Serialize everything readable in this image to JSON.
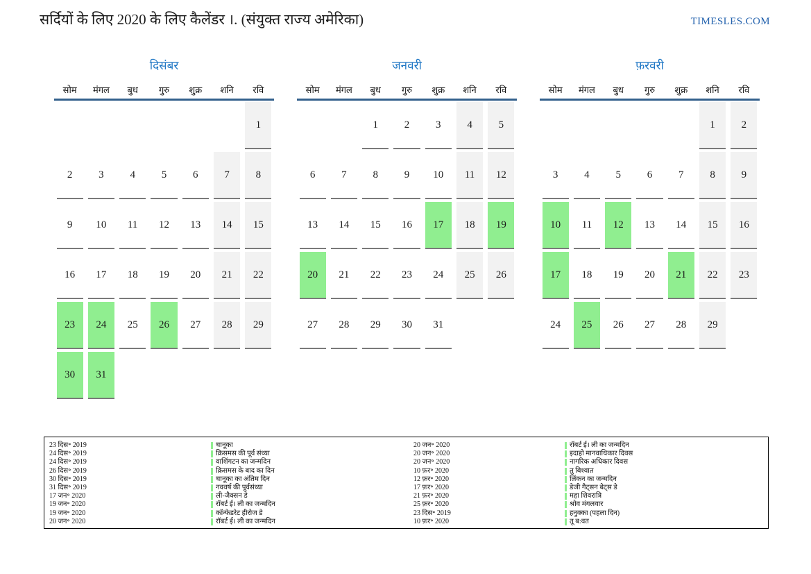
{
  "page": {
    "title": "सर्दियों के लिए 2020 के लिए कैलेंडर ।. (संयुक्त राज्य अमेरिका)",
    "brand": "TIMESLES.COM"
  },
  "colors": {
    "holiday_green": "#90ee90",
    "weekend_gray": "#f2f2f2",
    "month_title_blue": "#1f77c5",
    "header_rule_blue": "#33608c",
    "brand_blue": "#2563ae",
    "cell_underline_gray": "#7a7a7a"
  },
  "weekdays": [
    "सोम",
    "मंगल",
    "बुध",
    "गुरु",
    "शुक्र",
    "शनि",
    "रवि"
  ],
  "months": [
    {
      "title": "दिसंबर",
      "weeks": [
        [
          null,
          null,
          null,
          null,
          null,
          null,
          1
        ],
        [
          2,
          3,
          4,
          5,
          6,
          7,
          8
        ],
        [
          9,
          10,
          11,
          12,
          13,
          14,
          15
        ],
        [
          16,
          17,
          18,
          19,
          20,
          21,
          22
        ],
        [
          23,
          24,
          25,
          26,
          27,
          28,
          29
        ],
        [
          30,
          31,
          null,
          null,
          null,
          null,
          null
        ]
      ],
      "holidays": [
        23,
        24,
        26,
        30,
        31
      ]
    },
    {
      "title": "जनवरी",
      "weeks": [
        [
          null,
          null,
          1,
          2,
          3,
          4,
          5
        ],
        [
          6,
          7,
          8,
          9,
          10,
          11,
          12
        ],
        [
          13,
          14,
          15,
          16,
          17,
          18,
          19
        ],
        [
          20,
          21,
          22,
          23,
          24,
          25,
          26
        ],
        [
          27,
          28,
          29,
          30,
          31,
          null,
          null
        ]
      ],
      "holidays": [
        17,
        19,
        20
      ]
    },
    {
      "title": "फ़रवरी",
      "weeks": [
        [
          null,
          null,
          null,
          null,
          null,
          1,
          2
        ],
        [
          3,
          4,
          5,
          6,
          7,
          8,
          9
        ],
        [
          10,
          11,
          12,
          13,
          14,
          15,
          16
        ],
        [
          17,
          18,
          19,
          20,
          21,
          22,
          23
        ],
        [
          24,
          25,
          26,
          27,
          28,
          29,
          null
        ]
      ],
      "holidays": [
        10,
        12,
        17,
        21,
        25
      ]
    }
  ],
  "legend": {
    "left": [
      {
        "date": "23 दिस॰ 2019",
        "event": "चानूका"
      },
      {
        "date": "24 दिस॰ 2019",
        "event": "क्रिसमस की पूर्व संध्या"
      },
      {
        "date": "24 दिस॰ 2019",
        "event": "वाशिंगटन का जन्मदिन"
      },
      {
        "date": "26 दिस॰ 2019",
        "event": "क्रिसमस के बाद का दिन"
      },
      {
        "date": "30 दिस॰ 2019",
        "event": "चानूका का अंतिम दिन"
      },
      {
        "date": "31 दिस॰ 2019",
        "event": "नववर्ष की पूर्वसंध्या"
      },
      {
        "date": "17 जन॰ 2020",
        "event": "ली-जैक्सन डे"
      },
      {
        "date": "19 जन॰ 2020",
        "event": "रॉबर्ट ई। ली का जन्मदिन"
      },
      {
        "date": "19 जन॰ 2020",
        "event": "कॉन्फेडरेट हीरोज डे"
      },
      {
        "date": "20 जन॰ 2020",
        "event": "रॉबर्ट ई। ली का जन्मदिन"
      }
    ],
    "right": [
      {
        "date": "20 जन॰ 2020",
        "event": "रॉबर्ट ई। ली का जन्मदिन"
      },
      {
        "date": "20 जन॰ 2020",
        "event": "इदाहो मानवाधिकार दिवस"
      },
      {
        "date": "20 जन॰ 2020",
        "event": "नागरिक अधिकार दिवस"
      },
      {
        "date": "10 फ़र॰ 2020",
        "event": "तु बिश्वात"
      },
      {
        "date": "12 फ़र॰ 2020",
        "event": "लिंकन का जन्मदिन"
      },
      {
        "date": "17 फ़र॰ 2020",
        "event": "डेजी गैट्सन बेट्स डे"
      },
      {
        "date": "21 फ़र॰ 2020",
        "event": "महा शिवरात्रि"
      },
      {
        "date": "25 फ़र॰ 2020",
        "event": "श्रोव मंगलवार"
      },
      {
        "date": "23 दिस॰ 2019",
        "event": "हनुक्का (पहला दिन)"
      },
      {
        "date": "10 फ़र॰ 2020",
        "event": "तू ब:वत"
      }
    ]
  }
}
